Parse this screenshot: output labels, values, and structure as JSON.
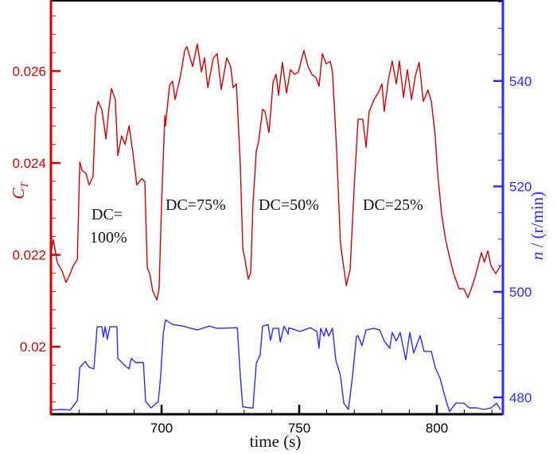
{
  "chart_data": {
    "type": "line",
    "xlabel": "time (s)",
    "ylabel_left": {
      "symbol": "C",
      "subscript": "T"
    },
    "ylabel_right": {
      "symbol": "n",
      "rest": " / (r/min)"
    },
    "xlim": [
      659.8,
      824
    ],
    "ylim_left": [
      0.01853,
      0.02753
    ],
    "ylim_right": [
      476.8,
      555.2
    ],
    "x_ticks": [
      700,
      750,
      800
    ],
    "x_tick_labels": [
      "700",
      "750",
      "800"
    ],
    "y_left_ticks": [
      0.02,
      0.022,
      0.024,
      0.026
    ],
    "y_left_tick_labels": [
      "0.02",
      "0.022",
      "0.024",
      "0.026"
    ],
    "y_right_ticks": [
      480,
      500,
      520,
      540
    ],
    "y_right_tick_labels": [
      "480",
      "500",
      "520",
      "540"
    ],
    "grid": false,
    "colors": {
      "ct": "#d40000",
      "n": "#2a2aff",
      "frame": "#000000"
    },
    "annotations": [
      {
        "id": "dc100",
        "line1": "DC=",
        "line2": "100%"
      },
      {
        "id": "dc75",
        "line1": "DC=75%"
      },
      {
        "id": "dc50",
        "line1": "DC=50%"
      },
      {
        "id": "dc25",
        "line1": "DC=25%"
      }
    ],
    "series": [
      {
        "axis": "left",
        "x": [
          659.8,
          660.7,
          662.1,
          663.9,
          665.3,
          666.8,
          667.9,
          669.4,
          670.3,
          671.2,
          672.5,
          673.7,
          675.1,
          676.0,
          676.9,
          678.3,
          679.8,
          680.9,
          681.8,
          683.2,
          684.1,
          685.5,
          686.7,
          688.2,
          689.6,
          691.0,
          692.8,
          693.9,
          694.8,
          695.7,
          696.8,
          698.3,
          699.1,
          700.0,
          701.2,
          701.4,
          702.9,
          704.0,
          704.9,
          706.9,
          708.4,
          709.2,
          711.3,
          713.0,
          714.5,
          715.6,
          716.8,
          718.8,
          720.2,
          721.7,
          723.7,
          725.1,
          726.0,
          727.2,
          728.6,
          729.5,
          730.3,
          731.5,
          732.4,
          733.2,
          734.4,
          735.3,
          736.7,
          737.6,
          739.0,
          740.5,
          741.6,
          742.5,
          743.9,
          745.4,
          746.8,
          748.3,
          749.7,
          751.7,
          753.2,
          754.6,
          756.1,
          757.2,
          758.4,
          759.8,
          761.3,
          762.1,
          763.6,
          765.0,
          767.1,
          768.5,
          769.9,
          771.4,
          773.1,
          774.3,
          775.4,
          777.2,
          778.9,
          780.1,
          780.9,
          782.4,
          783.8,
          785.3,
          786.4,
          787.9,
          789.3,
          790.8,
          792.2,
          793.6,
          795.1,
          796.8,
          798.0,
          799.4,
          800.3,
          801.7,
          803.2,
          804.6,
          806.1,
          808.1,
          809.8,
          811.3,
          812.4,
          813.9,
          816.2,
          817.3,
          818.5,
          819.7,
          821.4,
          823.1
        ],
        "y": [
          0.02202,
          0.02233,
          0.02183,
          0.02164,
          0.0214,
          0.02159,
          0.02176,
          0.0219,
          0.02402,
          0.02383,
          0.02378,
          0.02352,
          0.02371,
          0.02503,
          0.02534,
          0.02516,
          0.02452,
          0.02521,
          0.02562,
          0.02538,
          0.02416,
          0.02459,
          0.0244,
          0.02481,
          0.02421,
          0.02352,
          0.02366,
          0.02359,
          0.02171,
          0.02159,
          0.02121,
          0.02102,
          0.02126,
          0.02314,
          0.02503,
          0.02481,
          0.02569,
          0.02578,
          0.02538,
          0.0259,
          0.02645,
          0.02653,
          0.0261,
          0.02659,
          0.02598,
          0.02629,
          0.02564,
          0.02628,
          0.02638,
          0.0256,
          0.02629,
          0.0261,
          0.02564,
          0.02572,
          0.02397,
          0.02214,
          0.0219,
          0.02147,
          0.02162,
          0.0231,
          0.02426,
          0.02448,
          0.02517,
          0.02512,
          0.02466,
          0.02576,
          0.02593,
          0.02547,
          0.02619,
          0.02552,
          0.02603,
          0.02593,
          0.02598,
          0.02645,
          0.0261,
          0.02593,
          0.02586,
          0.02567,
          0.02638,
          0.02616,
          0.02621,
          0.02598,
          0.02426,
          0.02224,
          0.02133,
          0.02167,
          0.0234,
          0.02495,
          0.02495,
          0.02434,
          0.02512,
          0.02538,
          0.02555,
          0.02572,
          0.02512,
          0.02581,
          0.02622,
          0.02572,
          0.02622,
          0.02543,
          0.02603,
          0.02538,
          0.0259,
          0.02619,
          0.02534,
          0.02559,
          0.02534,
          0.02459,
          0.02378,
          0.0229,
          0.02233,
          0.02195,
          0.02159,
          0.02126,
          0.02126,
          0.02107,
          0.02124,
          0.02152,
          0.02205,
          0.02184,
          0.02209,
          0.02176,
          0.02159,
          0.02176
        ]
      },
      {
        "axis": "right",
        "x": [
          659.8,
          660.7,
          663.6,
          666.8,
          669.4,
          670.3,
          672.3,
          673.7,
          675.4,
          676.6,
          678.3,
          678.9,
          679.5,
          680.3,
          681.2,
          683.8,
          684.1,
          686.7,
          688.2,
          689.0,
          690.5,
          693.4,
          694.2,
          696.2,
          698.8,
          699.7,
          700.6,
          701.4,
          704.0,
          707.8,
          713.0,
          717.3,
          720.2,
          727.5,
          728.6,
          729.5,
          732.4,
          733.2,
          734.4,
          735.8,
          736.7,
          738.7,
          739.6,
          740.5,
          742.5,
          743.1,
          744.5,
          746.0,
          746.2,
          750.3,
          754.0,
          756.4,
          757.2,
          757.8,
          759.0,
          759.8,
          760.7,
          762.1,
          763.3,
          765.0,
          766.2,
          767.9,
          769.4,
          770.8,
          771.4,
          772.8,
          774.3,
          777.2,
          779.2,
          780.9,
          782.9,
          783.8,
          785.3,
          786.7,
          788.7,
          790.2,
          791.6,
          793.9,
          795.4,
          798.0,
          799.4,
          801.2,
          803.2,
          804.6,
          806.9,
          809.8,
          811.8,
          814.7,
          817.1,
          819.7,
          821.7,
          823.1
        ],
        "y": [
          477.7,
          477.6,
          477.7,
          477.6,
          479.4,
          485.7,
          486.8,
          485.7,
          485.4,
          493.4,
          493.4,
          491.4,
          493.4,
          491.0,
          493.4,
          493.4,
          487.4,
          486.0,
          485.4,
          487.4,
          486.6,
          486.6,
          479.2,
          478.0,
          479.2,
          484.1,
          492.0,
          494.7,
          493.8,
          493.5,
          492.8,
          493.5,
          493.1,
          493.2,
          484.1,
          478.2,
          478.0,
          478.0,
          486.5,
          488.0,
          493.5,
          493.8,
          490.8,
          493.1,
          493.1,
          490.5,
          493.5,
          492.0,
          493.2,
          492.5,
          493.2,
          492.5,
          489.3,
          493.1,
          491.6,
          493.1,
          491.6,
          493.1,
          487.1,
          484.1,
          478.9,
          477.7,
          484.1,
          491.6,
          491.7,
          489.8,
          492.8,
          493.1,
          492.8,
          490.7,
          489.3,
          492.3,
          490.7,
          492.3,
          487.1,
          492.3,
          488.4,
          491.7,
          488.7,
          488.7,
          485.7,
          483.6,
          479.7,
          477.3,
          478.9,
          478.9,
          478.0,
          478.0,
          477.7,
          478.0,
          478.9,
          477.7
        ]
      }
    ]
  }
}
